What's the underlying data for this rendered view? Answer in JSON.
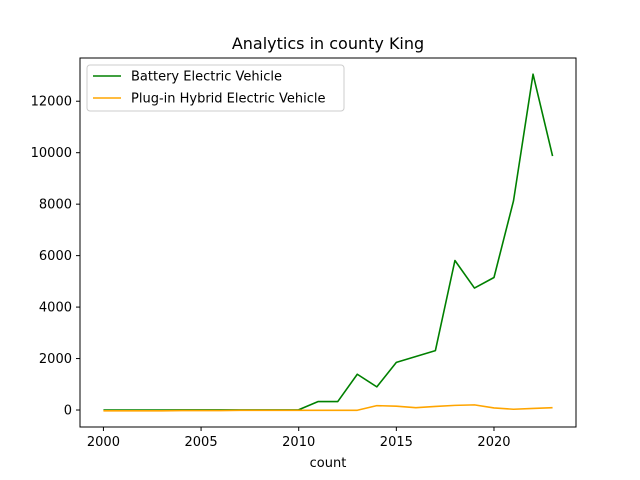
{
  "chart_data": {
    "type": "line",
    "title": "Analytics in county King",
    "xlabel": "count",
    "ylabel": "",
    "xlim": [
      1998.8,
      2024.2
    ],
    "ylim": [
      -660,
      13680
    ],
    "xticks": [
      2000,
      2005,
      2010,
      2015,
      2020
    ],
    "yticks": [
      0,
      2000,
      4000,
      6000,
      8000,
      10000,
      12000
    ],
    "grid": false,
    "legend_position": "top-left",
    "series": [
      {
        "name": "Battery Electric Vehicle",
        "color": "#008000",
        "x": [
          2000,
          2001,
          2002,
          2003,
          2004,
          2005,
          2006,
          2007,
          2008,
          2009,
          2010,
          2011,
          2012,
          2013,
          2014,
          2015,
          2016,
          2017,
          2018,
          2019,
          2020,
          2021,
          2022,
          2023
        ],
        "y": [
          0,
          0,
          0,
          0,
          5,
          5,
          5,
          5,
          5,
          5,
          10,
          330,
          330,
          1390,
          900,
          1850,
          2080,
          2310,
          5810,
          4740,
          5150,
          8130,
          13050,
          9870
        ]
      },
      {
        "name": "Plug-in Hybrid Electric Vehicle",
        "color": "#ffa500",
        "x": [
          2000,
          2001,
          2002,
          2003,
          2004,
          2005,
          2006,
          2007,
          2008,
          2009,
          2010,
          2011,
          2012,
          2013,
          2014,
          2015,
          2016,
          2017,
          2018,
          2019,
          2020,
          2021,
          2022,
          2023
        ],
        "y": [
          -30,
          -30,
          -30,
          -30,
          -20,
          -20,
          -20,
          -10,
          -10,
          -10,
          -10,
          -10,
          -10,
          -10,
          170,
          150,
          90,
          140,
          180,
          200,
          80,
          30,
          60,
          90
        ]
      }
    ]
  }
}
